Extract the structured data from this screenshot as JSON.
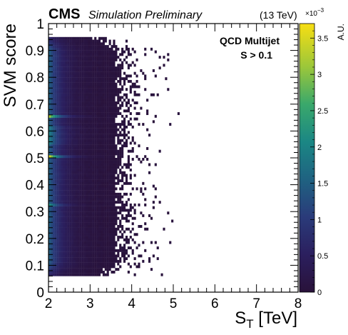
{
  "header": {
    "experiment": "CMS",
    "status": "Simulation Preliminary",
    "energy": "(13 TeV)"
  },
  "chart_data": {
    "type": "heatmap",
    "title": "",
    "xlabel_main": "S",
    "xlabel_sub": "T",
    "xlabel_unit": " [TeV]",
    "ylabel": "SVM score",
    "zlabel": "A.U.",
    "z_exponent_base": "×10",
    "z_exponent": "−3",
    "xlim": [
      2,
      8
    ],
    "ylim": [
      0,
      1
    ],
    "zlim": [
      0,
      0.0037
    ],
    "xticks": [
      "2",
      "3",
      "4",
      "5",
      "6",
      "7",
      "8"
    ],
    "yticks": [
      "0",
      "0.1",
      "0.2",
      "0.3",
      "0.4",
      "0.5",
      "0.6",
      "0.7",
      "0.8",
      "0.9",
      "1"
    ],
    "zticks": [
      "0",
      "0.5",
      "1",
      "1.5",
      "2",
      "2.5",
      "3",
      "3.5"
    ],
    "annotations": [
      "QCD Multijet",
      "S > 0.1"
    ],
    "colormap": "viridis",
    "populated_region": {
      "x_min": 2.0,
      "y_min": 0.06,
      "y_max": 0.95
    },
    "density_description_points": [
      {
        "x": 2.05,
        "y": 0.5,
        "z": 0.0037
      },
      {
        "x": 2.05,
        "y": 0.65,
        "z": 0.0033
      },
      {
        "x": 2.05,
        "y": 0.55,
        "z": 0.0024
      },
      {
        "x": 2.3,
        "y": 0.5,
        "z": 0.0012
      },
      {
        "x": 2.6,
        "y": 0.5,
        "z": 0.0007
      },
      {
        "x": 3.0,
        "y": 0.5,
        "z": 0.0003
      },
      {
        "x": 3.5,
        "y": 0.5,
        "z": 0.0001
      },
      {
        "x": 4.5,
        "y": 0.5,
        "z": 2e-05
      },
      {
        "x": 6.05,
        "y": 0.47,
        "z": 1e-05
      }
    ]
  }
}
